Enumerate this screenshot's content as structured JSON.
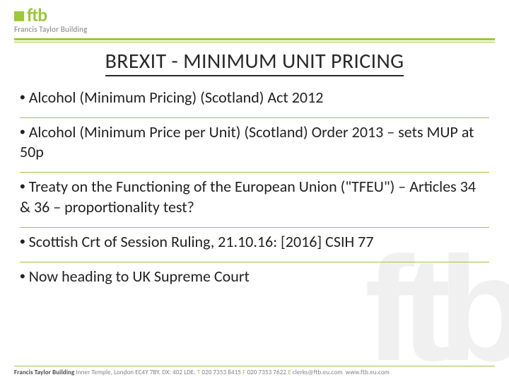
{
  "brand": {
    "logo_text": "ftb",
    "subtitle": "Francis Taylor Building"
  },
  "title": "BREXIT - MINIMUM UNIT PRICING",
  "bullets": [
    "Alcohol (Minimum Pricing) (Scotland) Act 2012",
    "Alcohol (Minimum Price per Unit) (Scotland) Order 2013 – sets MUP at 50p",
    "Treaty on the Functioning of the European Union (\"TFEU\") – Articles 34 & 36 – proportionality test?",
    " Scottish Crt of Session Ruling, 21.10.16:  [2016] CSIH 77",
    "Now heading to UK Supreme Court"
  ],
  "footer": {
    "name": "Francis Taylor Building",
    "address": "Inner Temple, London EC4Y 7BY. DX: 402 LDE.",
    "t_label": "T",
    "t_val": "020 7353 8415",
    "f_label": "F",
    "f_val": "020 7353 7622",
    "e_label": "E",
    "e_val": "clerks@ftb.eu.com",
    "web": "www.ftb.eu.com"
  },
  "watermark": "ftb",
  "colors": {
    "accent": "#9ac93a",
    "text": "#222222",
    "muted": "#808080",
    "watermark": "#f0f0f0"
  }
}
